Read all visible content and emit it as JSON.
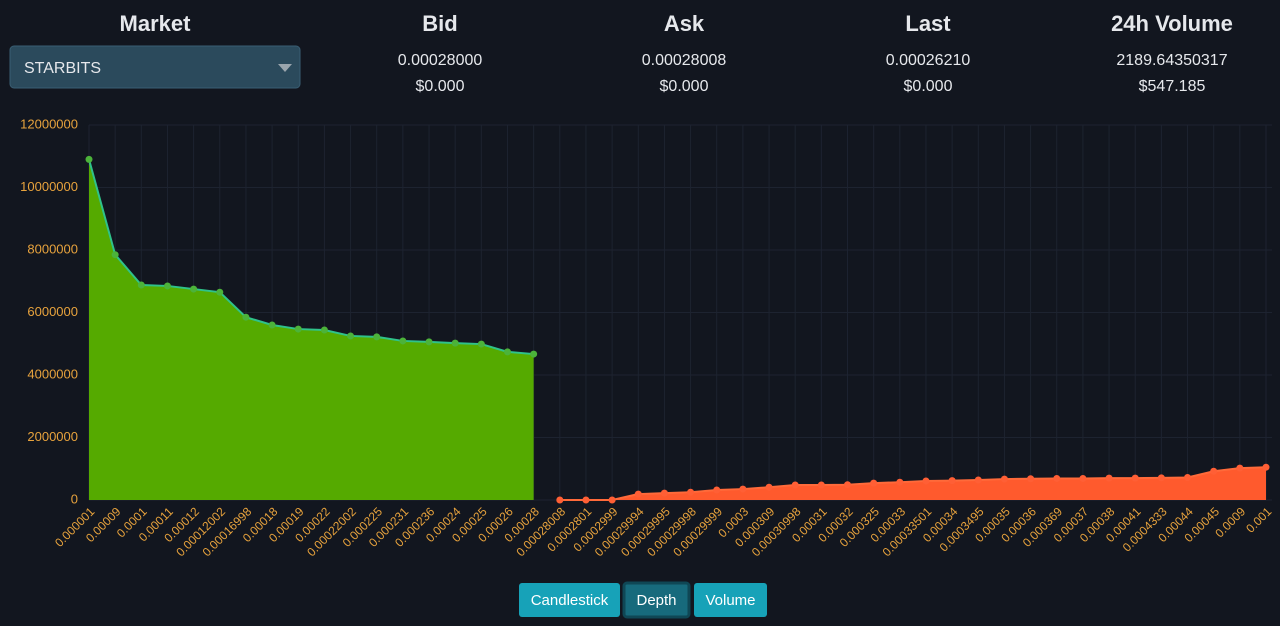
{
  "header": {
    "market_label": "Market",
    "market_select": "STARBITS",
    "columns": [
      {
        "title": "Bid",
        "value": "0.00028000",
        "usd": "$0.000"
      },
      {
        "title": "Ask",
        "value": "0.00028008",
        "usd": "$0.000"
      },
      {
        "title": "Last",
        "value": "0.00026210",
        "usd": "$0.000"
      },
      {
        "title": "24h Volume",
        "value": "2189.64350317",
        "usd": "$547.185"
      }
    ]
  },
  "buttons": [
    "Candlestick",
    "Depth",
    "Volume"
  ],
  "active_button": "Depth",
  "chart_data": {
    "type": "area",
    "categories": [
      "0.000001",
      "0.00009",
      "0.0001",
      "0.00011",
      "0.00012",
      "0.00012002",
      "0.00016998",
      "0.00018",
      "0.00019",
      "0.00022",
      "0.00022002",
      "0.000225",
      "0.000231",
      "0.000236",
      "0.00024",
      "0.00025",
      "0.00026",
      "0.00028",
      "0.00028008",
      "0.0002801",
      "0.0002999",
      "0.00029994",
      "0.00029995",
      "0.00029998",
      "0.00029999",
      "0.0003",
      "0.000309",
      "0.00030998",
      "0.00031",
      "0.00032",
      "0.000325",
      "0.00033",
      "0.00033501",
      "0.00034",
      "0.0003495",
      "0.00035",
      "0.00036",
      "0.000369",
      "0.00037",
      "0.00038",
      "0.00041",
      "0.0004333",
      "0.00044",
      "0.00045",
      "0.0009",
      "0.001"
    ],
    "series": [
      {
        "color": "#55aa00",
        "line_color": "#2fc28a",
        "marker_color": "#4cb33a",
        "values": [
          10900000,
          7850000,
          6880000,
          6850000,
          6750000,
          6650000,
          5850000,
          5600000,
          5470000,
          5440000,
          5250000,
          5220000,
          5090000,
          5060000,
          5020000,
          4990000,
          4740000,
          4670000,
          null,
          null,
          null,
          null,
          null,
          null,
          null,
          null,
          null,
          null,
          null,
          null,
          null,
          null,
          null,
          null,
          null,
          null,
          null,
          null,
          null,
          null,
          null,
          null,
          null,
          null,
          null,
          null
        ]
      },
      {
        "color": "#ff5a2d",
        "line_color": "#ff6a3a",
        "marker_color": "#ff5f35",
        "values": [
          null,
          null,
          null,
          null,
          null,
          null,
          null,
          null,
          null,
          null,
          null,
          null,
          null,
          null,
          null,
          null,
          null,
          null,
          0,
          0,
          0,
          190000,
          220000,
          250000,
          320000,
          350000,
          410000,
          480000,
          480000,
          490000,
          540000,
          570000,
          610000,
          620000,
          640000,
          670000,
          680000,
          690000,
          690000,
          700000,
          700000,
          710000,
          720000,
          920000,
          1020000,
          1050000
        ]
      }
    ],
    "ylim": [
      0,
      12000000
    ],
    "yticks": [
      0,
      2000000,
      4000000,
      6000000,
      8000000,
      10000000,
      12000000
    ],
    "grid": true
  }
}
